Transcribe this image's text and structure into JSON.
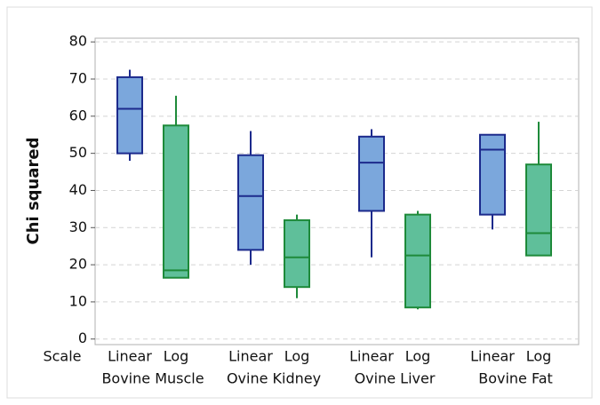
{
  "chart_data": {
    "type": "box",
    "y_label": "Chi squared",
    "x_label": "Scale",
    "categories": [
      "Bovine Muscle",
      "Ovine Kidney",
      "Ovine Liver",
      "Bovine Fat"
    ],
    "series": [
      {
        "name": "Linear",
        "color": "#7ba7dc",
        "edge_color": "#1c2a8c",
        "boxes": [
          {
            "low": 48,
            "q1": 50,
            "median": 62,
            "q3": 70.5,
            "high": 72.5
          },
          {
            "low": 20,
            "q1": 24,
            "median": 38.5,
            "q3": 49.5,
            "high": 56
          },
          {
            "low": 22,
            "q1": 34.5,
            "median": 47.5,
            "q3": 54.5,
            "high": 56.5
          },
          {
            "low": 29.5,
            "q1": 33.5,
            "median": 51,
            "q3": 55,
            "high": 55
          }
        ]
      },
      {
        "name": "Log",
        "color": "#5fbf9a",
        "edge_color": "#1e8a3a",
        "boxes": [
          {
            "low": 16.5,
            "q1": 16.5,
            "median": 18.5,
            "q3": 57.5,
            "high": 65.5
          },
          {
            "low": 11,
            "q1": 14,
            "median": 22,
            "q3": 32,
            "high": 33.5
          },
          {
            "low": 8,
            "q1": 8.5,
            "median": 22.5,
            "q3": 33.5,
            "high": 34.5
          },
          {
            "low": 22.5,
            "q1": 22.5,
            "median": 28.5,
            "q3": 47,
            "high": 58.5
          }
        ]
      }
    ],
    "ylim": [
      -1.5,
      81
    ],
    "yticks": [
      0,
      10,
      20,
      30,
      40,
      50,
      60,
      70,
      80
    ],
    "grid": true
  }
}
